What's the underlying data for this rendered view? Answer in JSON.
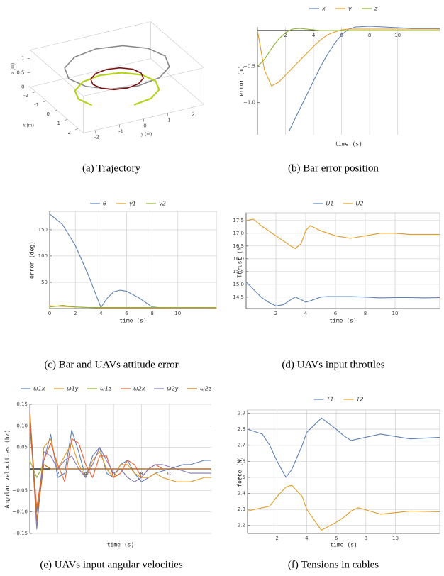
{
  "chart_data": [
    {
      "type": "line3d",
      "caption": "(a) Trajectory",
      "xlabel": "x (m)",
      "ylabel": "y (m)",
      "zlabel": "z (m)",
      "xlim": [
        -2.5,
        2.5
      ],
      "ylim": [
        -2.5,
        2.5
      ],
      "zlim": [
        0,
        1.3
      ],
      "xticks": [
        -2,
        -1,
        0,
        1,
        2
      ],
      "yticks": [
        -2,
        -1,
        0,
        1,
        2
      ],
      "zticks": [
        0,
        0.5,
        1
      ],
      "series": [
        {
          "color": "#888888",
          "x": [
            2,
            1.73,
            1,
            0,
            -1,
            -1.73,
            -2,
            -1.73,
            -1,
            0,
            1,
            1.73,
            2
          ],
          "y": [
            0,
            1,
            1.73,
            2,
            1.73,
            1,
            0,
            -1,
            -1.73,
            -2,
            -1.73,
            -1,
            0
          ],
          "z": [
            1,
            1,
            1,
            1,
            1,
            1,
            1,
            1,
            1,
            1,
            1,
            1,
            1
          ]
        },
        {
          "color": "#b5d31e",
          "x": [
            1.6,
            1.39,
            0.8,
            0,
            -0.8,
            -1.39,
            -1.6,
            -1.39,
            -0.8,
            0,
            0.8
          ],
          "y": [
            0,
            0.8,
            1.39,
            1.6,
            1.39,
            0.8,
            0,
            -0.8,
            -1.39,
            -1.6,
            -1.39
          ],
          "z": [
            0.2,
            0.2,
            0.2,
            0.2,
            0.2,
            0.2,
            0.2,
            0.2,
            0.2,
            0.2,
            0.2
          ]
        },
        {
          "color": "#7a1010",
          "x": [
            1,
            0.87,
            0.5,
            0,
            -0.5,
            -0.87,
            -1,
            -0.87,
            -0.5,
            0,
            0.5,
            0.87,
            1
          ],
          "y": [
            0,
            0.5,
            0.87,
            1,
            0.87,
            0.5,
            0,
            -0.5,
            -0.87,
            -1,
            -0.87,
            -0.5,
            0
          ],
          "z": [
            0.6,
            0.6,
            0.6,
            0.6,
            0.6,
            0.6,
            0.6,
            0.6,
            0.6,
            0.6,
            0.6,
            0.6,
            0.6
          ]
        }
      ]
    },
    {
      "type": "line",
      "caption": "(b) Bar error position",
      "xlabel": "time (s)",
      "ylabel": "error (m)",
      "grid": "x",
      "xaxis": "zero",
      "xlim": [
        0,
        13
      ],
      "ylim": [
        -1.45,
        0.05
      ],
      "xticks": [
        2,
        4,
        6,
        8,
        10
      ],
      "yticks": [
        {
          "value": -1,
          "label": "−1.0"
        },
        {
          "value": -0.5,
          "label": "−0.5"
        }
      ],
      "x": [
        0,
        0.5,
        1,
        1.5,
        2,
        2.25,
        2.5,
        3,
        3.5,
        4,
        4.5,
        5,
        5.5,
        6,
        6.5,
        7,
        8,
        9,
        10,
        11,
        12,
        13
      ],
      "series": [
        {
          "name": "x",
          "color": "#5e81b5",
          "values": [
            null,
            null,
            null,
            null,
            null,
            -1.4,
            -1.3,
            -1.1,
            -0.9,
            -0.7,
            -0.5,
            -0.33,
            -0.18,
            -0.06,
            0.02,
            0.05,
            0.06,
            0.05,
            0.04,
            0.03,
            0.03,
            0.03
          ]
        },
        {
          "name": "y",
          "color": "#e19c24",
          "values": [
            0,
            -0.55,
            -0.77,
            -0.72,
            -0.62,
            -0.57,
            -0.52,
            -0.42,
            -0.32,
            -0.22,
            -0.13,
            -0.06,
            -0.02,
            0.01,
            0.02,
            0.02,
            0.02,
            0.02,
            0.02,
            0.02,
            0.02,
            0.02
          ]
        },
        {
          "name": "z",
          "color": "#8fb032",
          "values": [
            -0.5,
            -0.4,
            -0.25,
            -0.12,
            -0.03,
            0,
            0.02,
            0.03,
            0.02,
            0.01,
            0,
            0,
            0,
            0,
            0,
            0,
            0,
            0,
            0,
            0,
            0,
            0
          ]
        }
      ]
    },
    {
      "type": "line",
      "caption": "(c) Bar and UAVs attitude error",
      "xlabel": "time (s)",
      "ylabel": "error (deg)",
      "grid": "both",
      "xaxis": "bottom",
      "xlim": [
        0,
        13
      ],
      "ylim": [
        0,
        185
      ],
      "xticks": [
        0,
        2,
        4,
        6,
        8,
        10
      ],
      "yticks": [
        50,
        100,
        150
      ],
      "x": [
        0,
        1,
        2,
        3,
        4,
        4.5,
        5,
        5.5,
        6,
        7,
        8,
        9,
        10,
        11,
        12,
        13
      ],
      "series": [
        {
          "name": "θ",
          "color": "#5e81b5",
          "values": [
            180,
            160,
            120,
            65,
            2,
            20,
            32,
            35,
            33,
            20,
            3,
            1,
            0,
            0,
            0,
            1
          ]
        },
        {
          "name": "γ1",
          "color": "#e19c24",
          "values": [
            5,
            4,
            3,
            2,
            1,
            1,
            1,
            1,
            1,
            1,
            1,
            1,
            1,
            1,
            1,
            1
          ]
        },
        {
          "name": "γ2",
          "color": "#8fb032",
          "values": [
            3,
            6,
            3,
            2,
            2,
            2,
            2,
            2,
            2,
            2,
            2,
            2,
            2,
            2,
            2,
            2
          ]
        }
      ]
    },
    {
      "type": "line",
      "caption": "(d) UAVs input throttles",
      "xlabel": "time (s)",
      "ylabel": "Thrust (N)",
      "grid": "both",
      "xaxis": "bottom",
      "xlim": [
        0,
        13
      ],
      "ylim": [
        14.05,
        17.8
      ],
      "xticks": [
        2,
        4,
        6,
        8,
        10
      ],
      "yticks": [
        14.5,
        {
          "value": 15,
          "label": "15.0"
        },
        15.5,
        {
          "value": 16,
          "label": "16.0"
        },
        16.5,
        {
          "value": 17,
          "label": "17.0"
        },
        17.5
      ],
      "x": [
        0,
        0.5,
        1,
        1.5,
        2,
        2.5,
        3,
        3.3,
        3.7,
        4,
        4.3,
        5,
        5.5,
        6,
        7,
        8,
        9,
        10,
        11,
        12,
        13
      ],
      "series": [
        {
          "name": "U1",
          "color": "#5e81b5",
          "values": [
            15.1,
            14.8,
            14.5,
            14.3,
            14.15,
            14.2,
            14.4,
            14.5,
            14.4,
            14.3,
            14.35,
            14.5,
            14.52,
            14.52,
            14.52,
            14.5,
            14.47,
            14.48,
            14.48,
            14.47,
            14.48
          ]
        },
        {
          "name": "U2",
          "color": "#e19c24",
          "values": [
            17.5,
            17.55,
            17.3,
            17.1,
            16.9,
            16.7,
            16.5,
            16.4,
            16.6,
            17.1,
            17.3,
            17.1,
            17,
            16.9,
            16.8,
            16.9,
            17,
            17,
            16.95,
            16.95,
            16.95
          ]
        }
      ]
    },
    {
      "type": "line",
      "caption": "(e) UAVs input angular velocities",
      "xlabel": "time (s)",
      "ylabel": "Angular velocities (hz)",
      "grid": "both",
      "xaxis": "zero",
      "xlim": [
        0,
        13
      ],
      "ylim": [
        -0.15,
        0.15
      ],
      "xticks": [
        2,
        4,
        6,
        8,
        10
      ],
      "yticks": [
        {
          "value": -0.15,
          "label": "−0.15"
        },
        {
          "value": -0.1,
          "label": "−0.10"
        },
        {
          "value": -0.05,
          "label": "−0.05"
        },
        0.05,
        {
          "value": 0.1,
          "label": "0.10"
        },
        0.15
      ],
      "x": [
        0,
        0.5,
        1,
        1.5,
        2,
        2.5,
        3,
        3.5,
        4,
        4.5,
        5,
        5.5,
        6,
        6.5,
        7,
        7.5,
        8,
        8.5,
        9,
        9.5,
        10,
        10.5,
        11,
        11.5,
        12,
        12.5,
        13
      ],
      "series": [
        {
          "name": "ω1x",
          "color": "#5e81b5",
          "values": [
            0.13,
            -0.1,
            0.02,
            0.08,
            -0.02,
            -0.01,
            0.09,
            0.04,
            -0.02,
            0.03,
            0.05,
            -0.01,
            -0.02,
            0.01,
            0.02,
            -0.01,
            -0.03,
            -0.02,
            -0.01,
            -0.005,
            0,
            0.005,
            0.01,
            0.01,
            0.015,
            0.02,
            0.02
          ]
        },
        {
          "name": "ω1y",
          "color": "#e19c24",
          "values": [
            0.12,
            -0.13,
            0.05,
            0.07,
            0,
            0.03,
            0.06,
            0.01,
            -0.02,
            0.02,
            0.04,
            0,
            -0.02,
            0.01,
            0.01,
            -0.01,
            -0.02,
            -0.02,
            -0.01,
            -0.02,
            -0.025,
            -0.03,
            -0.03,
            -0.03,
            -0.025,
            -0.02,
            -0.02
          ]
        },
        {
          "name": "ω1z",
          "color": "#8fb032",
          "values": [
            0.02,
            -0.02,
            0.01,
            0,
            0,
            0,
            0,
            0,
            0,
            0,
            0,
            0,
            0,
            0,
            0,
            0,
            0,
            0,
            0,
            0,
            0,
            0,
            0,
            0,
            0,
            0,
            0
          ]
        },
        {
          "name": "ω2x",
          "color": "#eb6235",
          "values": [
            0.1,
            -0.09,
            0.02,
            0.06,
            0.01,
            -0.03,
            0.07,
            0.06,
            0.01,
            -0.02,
            0.03,
            0.03,
            -0.02,
            -0.01,
            0.02,
            0.01,
            -0.02,
            0,
            0.01,
            0,
            0,
            0,
            0,
            0,
            0,
            0,
            0
          ]
        },
        {
          "name": "ω2y",
          "color": "#8778b3",
          "values": [
            0.14,
            -0.14,
            0.04,
            0.03,
            0,
            0.02,
            0.03,
            0,
            -0.02,
            0.01,
            0.05,
            0.02,
            -0.01,
            0,
            -0.02,
            -0.03,
            -0.02,
            0,
            0.01,
            0.01,
            0.005,
            0,
            -0.005,
            -0.01,
            -0.01,
            -0.01,
            -0.01
          ]
        },
        {
          "name": "ω2z",
          "color": "#c56e1a",
          "values": [
            0.13,
            -0.12,
            0.01,
            0,
            0,
            0,
            0,
            0,
            0,
            0,
            0,
            0,
            0,
            0,
            0,
            0,
            0,
            0,
            0,
            0,
            0,
            0,
            0,
            0,
            0,
            0,
            0
          ]
        }
      ]
    },
    {
      "type": "line",
      "caption": "(f) Tensions in cables",
      "xlabel": "time (s)",
      "ylabel": "force (N)",
      "grid": "both",
      "xaxis": "bottom",
      "xlim": [
        0,
        13
      ],
      "ylim": [
        2.15,
        2.92
      ],
      "xticks": [
        2,
        4,
        6,
        8,
        10
      ],
      "yticks": [
        2.2,
        2.3,
        2.4,
        2.5,
        2.6,
        2.7,
        2.8,
        2.9
      ],
      "x": [
        0,
        1,
        1.5,
        2,
        2.6,
        3,
        3.7,
        4,
        5,
        6,
        6.5,
        7,
        7.5,
        9,
        11,
        13
      ],
      "series": [
        {
          "name": "T1",
          "color": "#5e81b5",
          "values": [
            2.8,
            2.77,
            2.7,
            2.6,
            2.5,
            2.55,
            2.7,
            2.78,
            2.87,
            2.8,
            2.76,
            2.73,
            2.74,
            2.77,
            2.74,
            2.75
          ]
        },
        {
          "name": "T2",
          "color": "#e19c24",
          "values": [
            2.29,
            2.31,
            2.32,
            2.38,
            2.44,
            2.45,
            2.38,
            2.3,
            2.17,
            2.22,
            2.25,
            2.29,
            2.31,
            2.27,
            2.29,
            2.285
          ]
        }
      ]
    }
  ]
}
